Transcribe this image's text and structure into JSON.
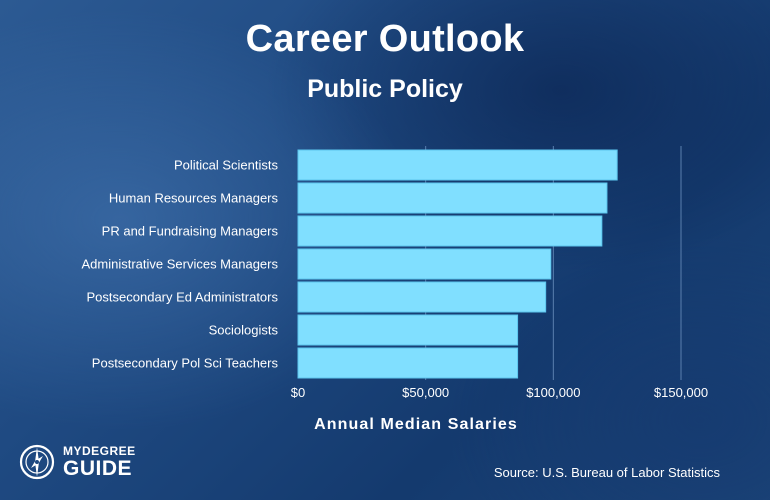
{
  "header": {
    "title": "Career Outlook",
    "subtitle": "Public Policy"
  },
  "footer": {
    "logo_top": "MYDEGREE",
    "logo_bottom": "GUIDE",
    "source": "Source: U.S. Bureau of Labor Statistics"
  },
  "colors": {
    "bar": "#80dfff",
    "bar_edge": "#5cc6ee",
    "gridline": "#5a7fae"
  },
  "chart_data": {
    "type": "bar",
    "orientation": "horizontal",
    "categories": [
      "Political Scientists",
      "Human Resources Managers",
      "PR and Fundraising Managers",
      "Administrative Services Managers",
      "Postsecondary Ed Administrators",
      "Sociologists",
      "Postsecondary Pol Sci Teachers"
    ],
    "values": [
      125000,
      121000,
      119000,
      99000,
      97000,
      86000,
      86000
    ],
    "xlabel": "Annual Median Salaries",
    "ylabel": "",
    "xlim": [
      0,
      150000
    ],
    "xticks": [
      0,
      50000,
      100000,
      150000
    ],
    "xtick_labels": [
      "$0",
      "$50,000",
      "$100,000",
      "$150,000"
    ],
    "grid": "vertical"
  }
}
